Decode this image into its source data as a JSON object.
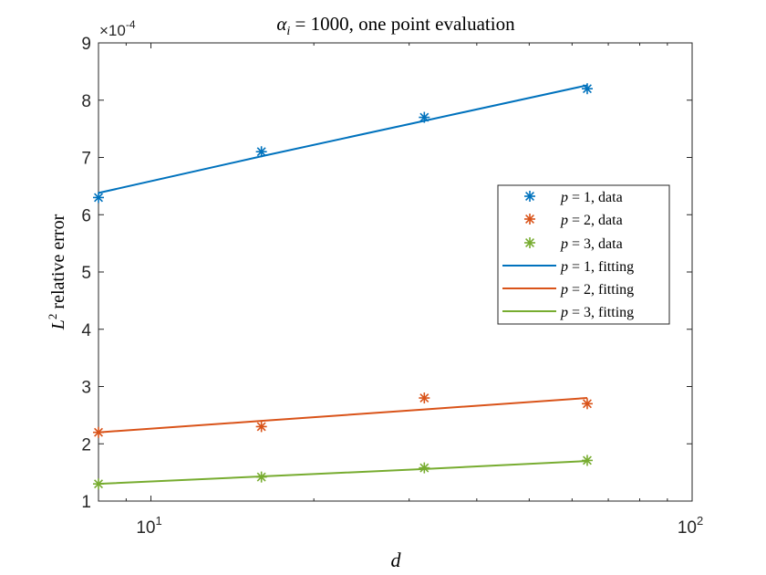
{
  "chart_data": {
    "type": "line",
    "title": "α_i = 1000, one point evaluation",
    "title_parts": {
      "symbol": "α",
      "subscript": "i",
      "rest": " = 1000, one point evaluation"
    },
    "xlabel": "d",
    "ylabel": "L² relative error",
    "ylabel_parts": {
      "symbol": "L",
      "superscript": "2",
      "rest": " relative error"
    },
    "xscale": "log",
    "xlim": [
      8,
      100
    ],
    "ylim": [
      1,
      9
    ],
    "y_multiplier_label": "×10⁻⁴",
    "y_multiplier_parts": {
      "base": "×10",
      "exp": "-4"
    },
    "yticks": [
      "1",
      "2",
      "3",
      "4",
      "5",
      "6",
      "7",
      "8",
      "9"
    ],
    "xticks": [
      {
        "value": 10,
        "base": "10",
        "exp": "1"
      },
      {
        "value": 100,
        "base": "10",
        "exp": "2"
      }
    ],
    "x": [
      8,
      16,
      32,
      64
    ],
    "series": [
      {
        "name": "p = 1, data",
        "kind": "marker",
        "color": "#0072BD",
        "values": [
          6.3,
          7.1,
          7.7,
          8.2
        ]
      },
      {
        "name": "p = 2, data",
        "kind": "marker",
        "color": "#D95319",
        "values": [
          2.2,
          2.3,
          2.8,
          2.7
        ]
      },
      {
        "name": "p = 3, data",
        "kind": "marker",
        "color": "#77AC30",
        "values": [
          1.3,
          1.42,
          1.58,
          1.71
        ]
      },
      {
        "name": "p = 1, fitting",
        "kind": "line",
        "color": "#0072BD",
        "values": [
          6.38,
          7.02,
          7.64,
          8.26
        ]
      },
      {
        "name": "p = 2, fitting",
        "kind": "line",
        "color": "#D95319",
        "values": [
          2.2,
          2.4,
          2.6,
          2.8
        ]
      },
      {
        "name": "p = 3, fitting",
        "kind": "line",
        "color": "#77AC30",
        "values": [
          1.3,
          1.43,
          1.56,
          1.7
        ]
      }
    ],
    "legend": {
      "position": "right",
      "entries": [
        {
          "var": "p",
          "rest": " = 1, data"
        },
        {
          "var": "p",
          "rest": " = 2, data"
        },
        {
          "var": "p",
          "rest": " = 3, data"
        },
        {
          "var": "p",
          "rest": " = 1, fitting"
        },
        {
          "var": "p",
          "rest": " = 2, fitting"
        },
        {
          "var": "p",
          "rest": " = 3, fitting"
        }
      ]
    },
    "grid": false
  }
}
